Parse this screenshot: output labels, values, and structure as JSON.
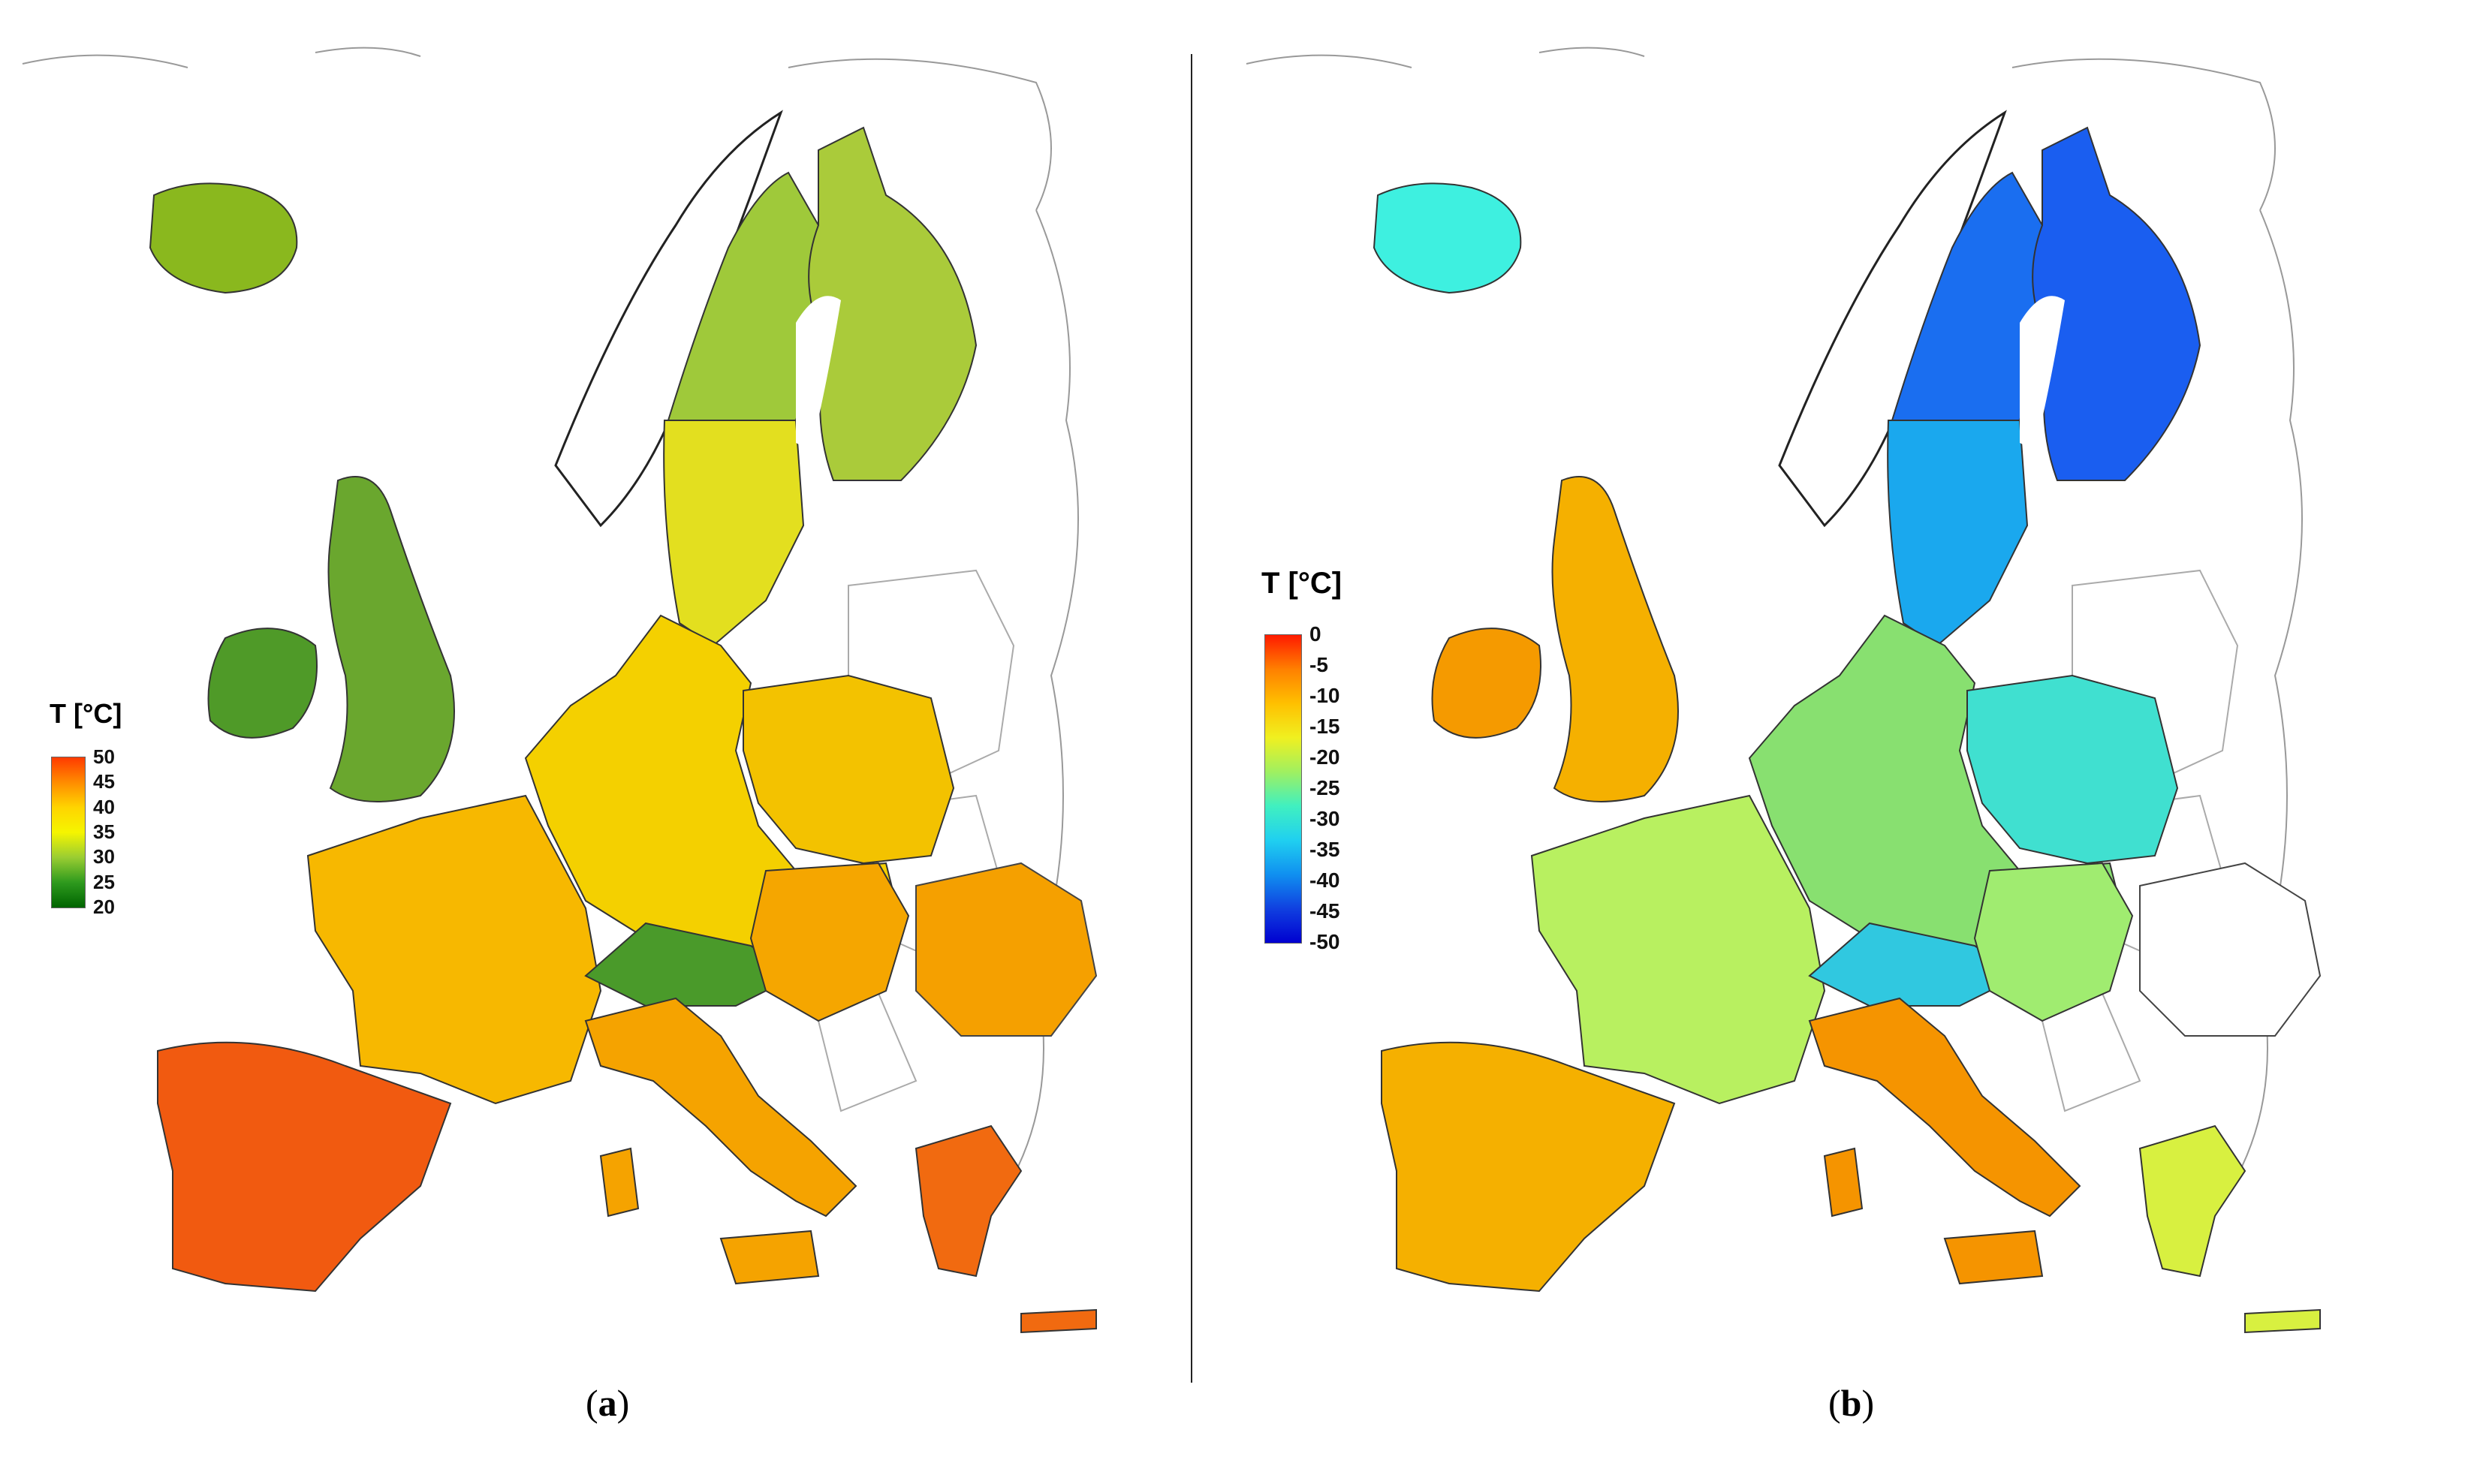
{
  "panels": [
    {
      "id": "a",
      "caption_open": "(",
      "caption_letter": "a",
      "caption_close": ")",
      "legend": {
        "title": "T [°C]",
        "ticks": [
          "50",
          "45",
          "40",
          "35",
          "30",
          "25",
          "20"
        ],
        "colors": [
          "#ff3a00",
          "#ff8c00",
          "#ffd400",
          "#f5f500",
          "#9acd32",
          "#2e9a1e",
          "#006400"
        ]
      },
      "region_colors": {
        "iceland": "#8ab81e",
        "scandinavia_north": "#9fc93a",
        "sweden_south": "#e3df1f",
        "finland": "#aacb3a",
        "uk": "#6aa72e",
        "ireland": "#4f9a28",
        "central": "#f4d000",
        "france": "#f7b800",
        "iberia": "#f15a10",
        "italy": "#f5a300",
        "alps": "#4a9a2a",
        "balkans": "#f5a600",
        "greece": "#f16a10",
        "romania": "#f5a000",
        "poland": "#f3c200"
      }
    },
    {
      "id": "b",
      "caption_open": "(",
      "caption_letter": "b",
      "caption_close": ")",
      "legend": {
        "title": "T [°C]",
        "ticks": [
          "0",
          "-5",
          "-10",
          "-15",
          "-20",
          "-25",
          "-30",
          "-35",
          "-40",
          "-45",
          "-50"
        ],
        "colors": [
          "#ff1a00",
          "#ff8000",
          "#ffc000",
          "#f0f020",
          "#a0f060",
          "#40f0c0",
          "#20d0f0",
          "#1090f0",
          "#1040e0",
          "#0000d0"
        ]
      },
      "region_colors": {
        "iceland": "#3ef0e0",
        "scandinavia_north": "#1a6ef0",
        "sweden_south": "#1aa8ee",
        "finland": "#1a5ef0",
        "uk": "#f5b000",
        "ireland": "#f59a00",
        "central": "#88e070",
        "france": "#b8f060",
        "iberia": "#f5b000",
        "italy": "#f59400",
        "alps": "#30c8e0",
        "balkans": "#a0ec70",
        "greece": "#d8f040",
        "romania": "#ffffff",
        "poland": "#40e0d0"
      }
    }
  ]
}
